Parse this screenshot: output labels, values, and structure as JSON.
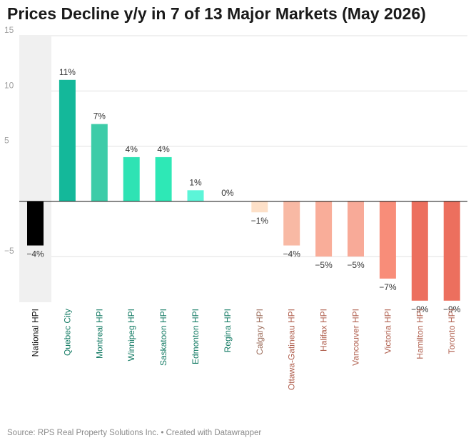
{
  "chart_data": {
    "type": "bar",
    "title": "Prices Decline y/y in 7 of 13 Major Markets (May 2026)",
    "source": "Source: RPS Real Property Solutions Inc. • Created with Datawrapper",
    "ylim": [
      -9,
      15
    ],
    "yticks": [
      15,
      10,
      5,
      -5
    ],
    "ytick_labels": [
      "15",
      "10",
      "5",
      "−5"
    ],
    "grid": true,
    "highlight_category": "National HPI",
    "categories": [
      "National HPI",
      "Quebec City",
      "Montreal HPI",
      "Winnipeg HPI",
      "Saskatoon HPI",
      "Edmonton HPI",
      "Regina HPI",
      "Calgary HPI",
      "Ottawa-Gatineau HPI",
      "Halifax HPI",
      "Vancouver HPI",
      "Victoria HPI",
      "Hamilton HPI",
      "Toronto HPI"
    ],
    "values": [
      -4,
      11,
      7,
      4,
      4,
      1,
      0,
      -1,
      -4,
      -5,
      -5,
      -7,
      -9,
      -9
    ],
    "value_labels": [
      "−4%",
      "11%",
      "7%",
      "4%",
      "4%",
      "1%",
      "0%",
      "−1%",
      "−4%",
      "−5%",
      "−5%",
      "−7%",
      "−9%",
      "−9%"
    ],
    "colors": [
      "#000000",
      "#14b89a",
      "#3dcca8",
      "#2ee3b4",
      "#2ee8b6",
      "#5cf5d8",
      "#8ae0c2",
      "#fde0c8",
      "#f8b9a4",
      "#f9ad99",
      "#f8aa98",
      "#f88d79",
      "#ec6f5e",
      "#ec6f5e"
    ],
    "label_colors": [
      "#111111",
      "#127a63",
      "#127a63",
      "#127a63",
      "#127a63",
      "#127a63",
      "#127a63",
      "#9a6a58",
      "#b0604f",
      "#b0604f",
      "#b0604f",
      "#b0604f",
      "#b0604f",
      "#b0604f"
    ]
  }
}
